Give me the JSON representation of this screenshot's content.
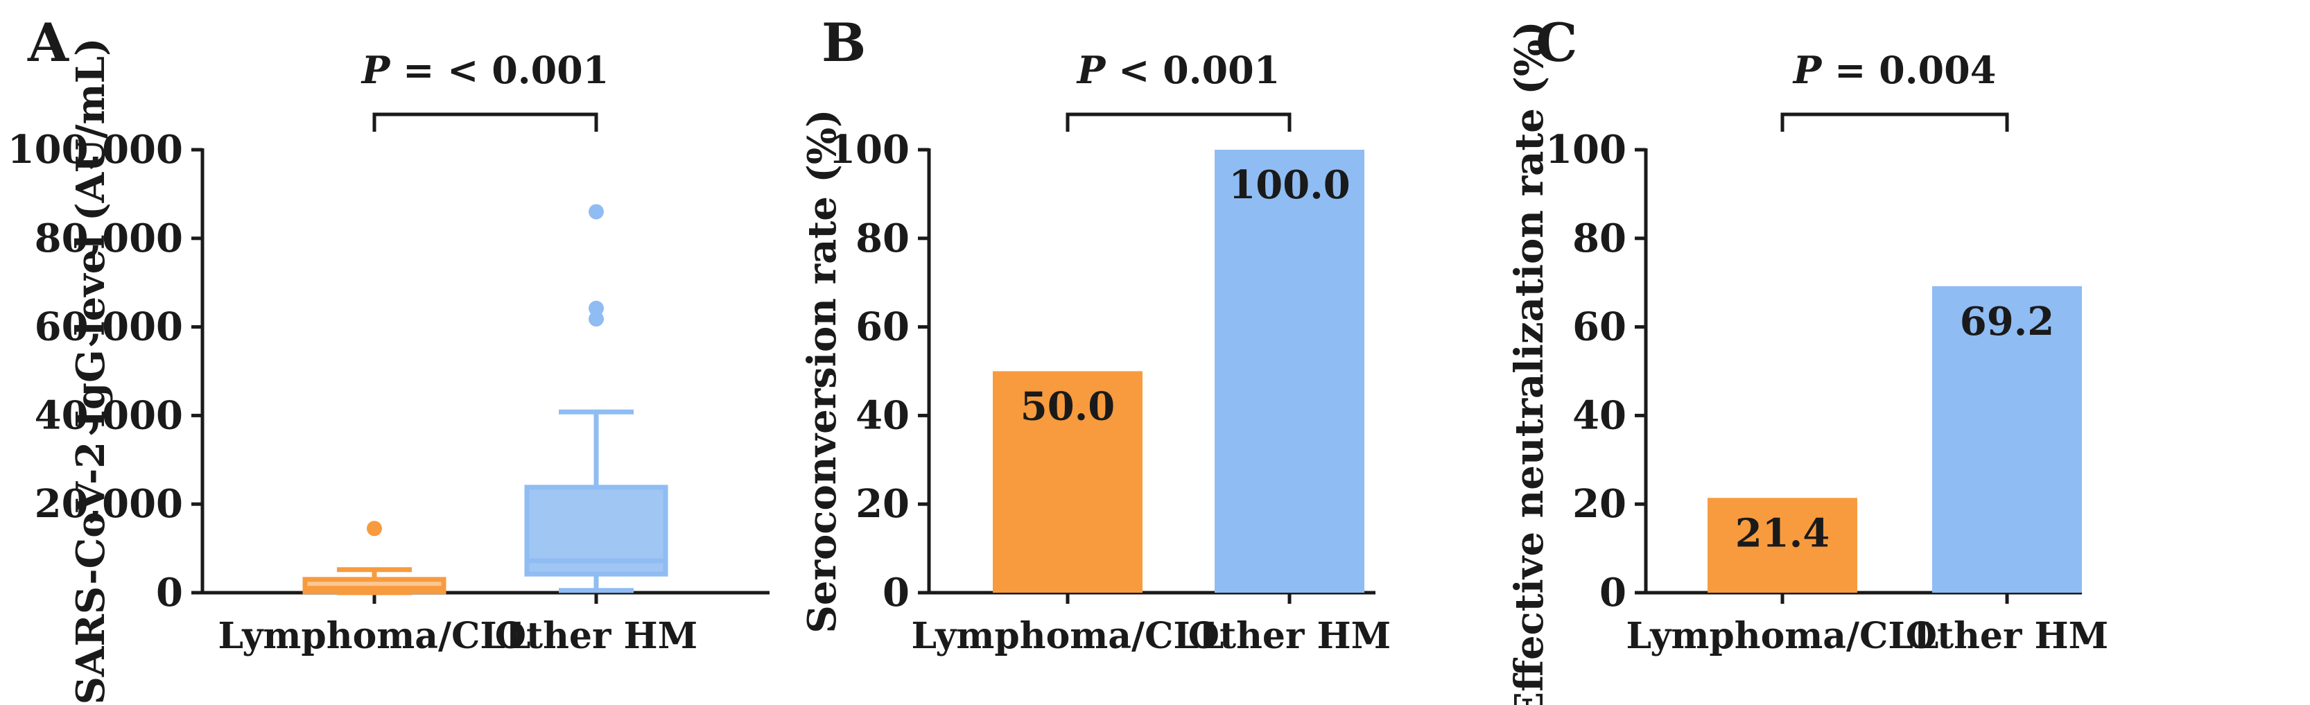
{
  "chart_data": [
    {
      "panel": "A",
      "type": "box",
      "ylabel": "SARS-CoV-2 IgG level (AU/mL)",
      "ylim": [
        0,
        100000
      ],
      "yticks": [
        0,
        20000,
        40000,
        60000,
        80000,
        100000
      ],
      "ytick_labels": [
        "0",
        "20,000",
        "40,000",
        "60,000",
        "80,000",
        "100,000"
      ],
      "categories": [
        "Lymphoma/CLL",
        "Other HM"
      ],
      "boxes": [
        {
          "name": "Lymphoma/CLL",
          "color": "#F79B3E",
          "whisker_low": 0,
          "q1": 200,
          "median": 1000,
          "q3": 3000,
          "whisker_high": 5200,
          "outliers": [
            14500
          ]
        },
        {
          "name": "Other HM",
          "color": "#8FBCF2",
          "whisker_low": 500,
          "q1": 4200,
          "median": 7200,
          "q3": 23800,
          "whisker_high": 40800,
          "outliers": [
            61800,
            64200,
            86000
          ]
        }
      ],
      "significance": {
        "prefix": "P",
        "text": " = < 0.001"
      }
    },
    {
      "panel": "B",
      "type": "bar",
      "ylabel": "Seroconversion rate (%)",
      "ylim": [
        0,
        100
      ],
      "yticks": [
        0,
        20,
        40,
        60,
        80,
        100
      ],
      "ytick_labels": [
        "0",
        "20",
        "40",
        "60",
        "80",
        "100"
      ],
      "categories": [
        "Lymphoma/CLL",
        "Other HM"
      ],
      "values": [
        50.0,
        100.0
      ],
      "value_labels": [
        "50.0",
        "100.0"
      ],
      "colors": [
        "#F79B3E",
        "#8FBCF2"
      ],
      "significance": {
        "prefix": "P",
        "text": " < 0.001"
      }
    },
    {
      "panel": "C",
      "type": "bar",
      "ylabel": "Effective neutralization rate (%)",
      "ylim": [
        0,
        100
      ],
      "yticks": [
        0,
        20,
        40,
        60,
        80,
        100
      ],
      "ytick_labels": [
        "0",
        "20",
        "40",
        "60",
        "80",
        "100"
      ],
      "categories": [
        "Lymphoma/CLL",
        "Other HM"
      ],
      "values": [
        21.4,
        69.2
      ],
      "value_labels": [
        "21.4",
        "69.2"
      ],
      "colors": [
        "#F79B3E",
        "#8FBCF2"
      ],
      "significance": {
        "prefix": "P",
        "text": " = 0.004"
      }
    }
  ]
}
